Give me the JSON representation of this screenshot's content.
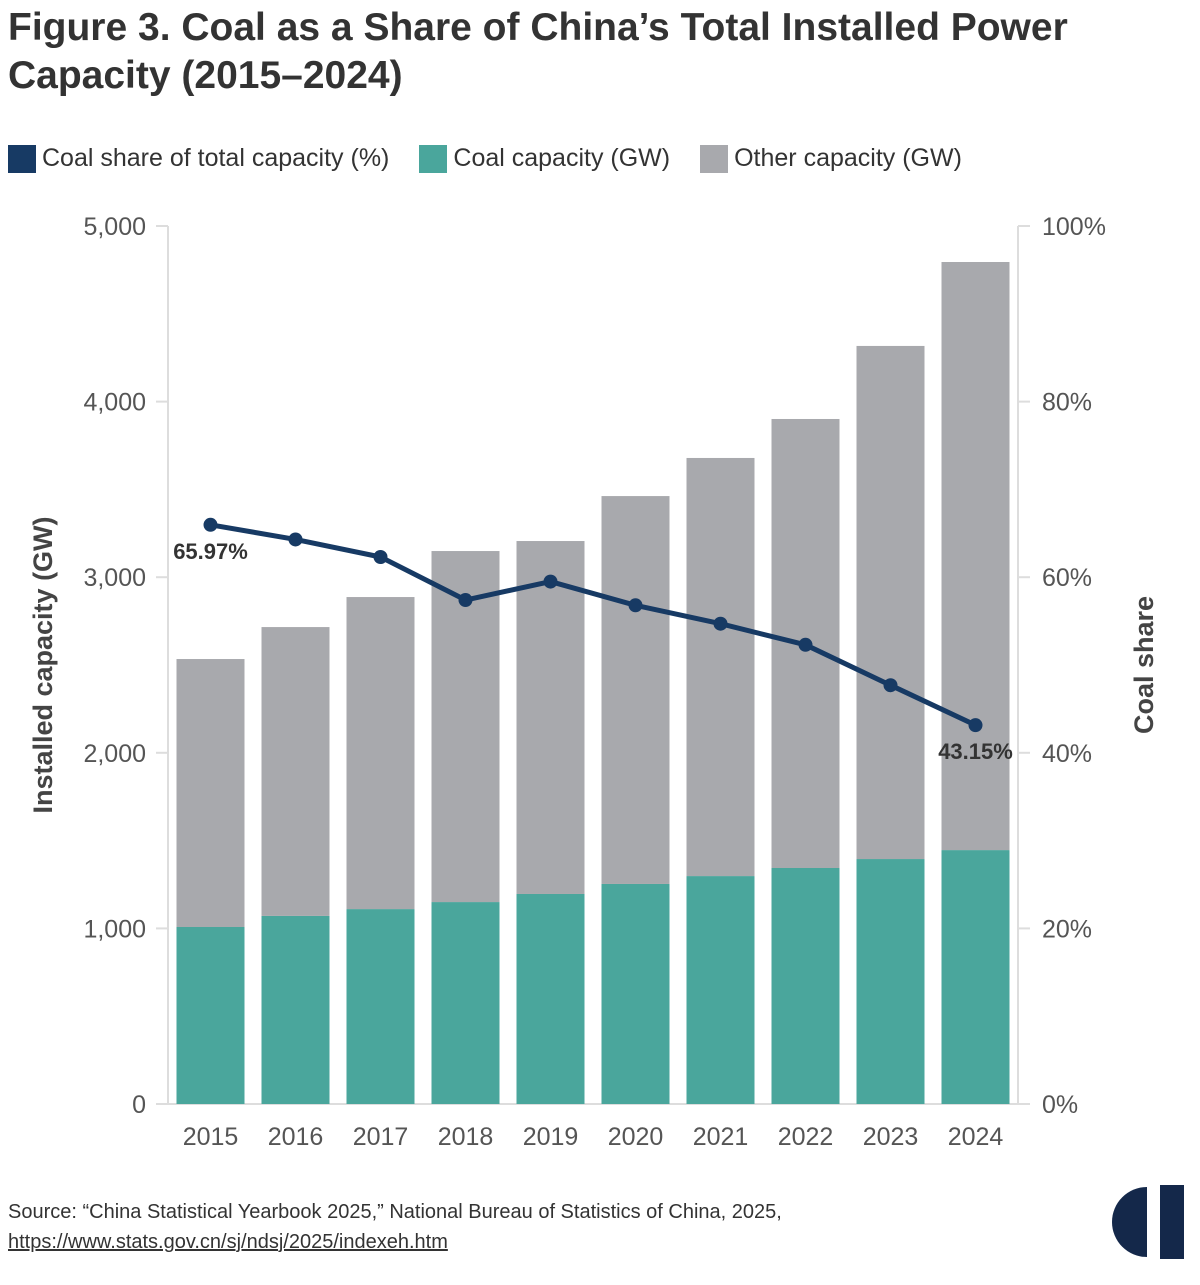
{
  "title": "Figure 3. Coal as a Share of China’s Total Installed Power Capacity (2015–2024)",
  "legend": [
    {
      "label": "Coal share of total capacity (%)",
      "color": "#173a64"
    },
    {
      "label": "Coal capacity (GW)",
      "color": "#4aa69c"
    },
    {
      "label": "Other capacity (GW)",
      "color": "#a8a9ad"
    }
  ],
  "source": {
    "text": "Source: “China Statistical Yearbook 2025,” National Bureau of Statistics of China, 2025,",
    "link": "https://www.stats.gov.cn/sj/ndsj/2025/indexeh.htm"
  },
  "chart_data": {
    "type": "bar",
    "stacked": true,
    "title": "Figure 3. Coal as a Share of China’s Total Installed Power Capacity (2015–2024)",
    "categories": [
      "2015",
      "2016",
      "2017",
      "2018",
      "2019",
      "2020",
      "2021",
      "2022",
      "2023",
      "2024"
    ],
    "ylabel": "Installed capacity (GW)",
    "y2label": "Coal share",
    "ylim": [
      0,
      5000
    ],
    "y2lim": [
      0,
      100
    ],
    "yticks": [
      "0",
      "1,000",
      "2,000",
      "3,000",
      "4,000",
      "5,000"
    ],
    "y2ticks": [
      "0%",
      "20%",
      "40%",
      "60%",
      "80%",
      "100%"
    ],
    "grid": false,
    "legend_position": "top-left",
    "series": [
      {
        "name": "Coal capacity (GW)",
        "type": "bar",
        "axis": "left",
        "color": "#4aa69c",
        "values": [
          1008,
          1071,
          1110,
          1150,
          1196,
          1253,
          1298,
          1344,
          1395,
          1446
        ]
      },
      {
        "name": "Other capacity (GW)",
        "type": "bar",
        "axis": "left",
        "color": "#a8a9ad",
        "values": [
          1526,
          1645,
          1777,
          1999,
          2010,
          2209,
          2381,
          2557,
          2922,
          3349
        ]
      },
      {
        "name": "Coal share of total capacity (%)",
        "type": "line",
        "axis": "right",
        "color": "#173a64",
        "values": [
          65.97,
          64.3,
          62.3,
          57.4,
          59.5,
          56.8,
          54.7,
          52.3,
          47.7,
          43.15
        ]
      }
    ],
    "annotations": [
      {
        "category": "2015",
        "text": "65.97%"
      },
      {
        "category": "2024",
        "text": "43.15%"
      }
    ]
  }
}
